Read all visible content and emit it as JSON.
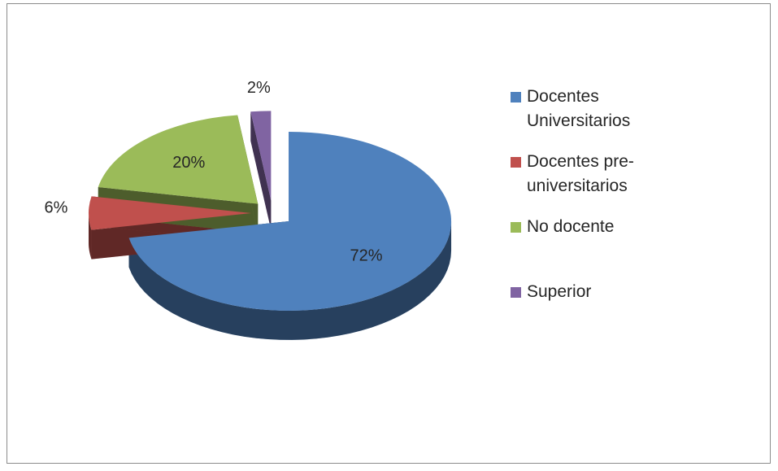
{
  "chart_data": {
    "type": "pie",
    "three_d": true,
    "exploded": true,
    "categories": [
      "Docentes Universitarios",
      "Docentes pre-universitarios",
      "No docente",
      "Superior"
    ],
    "values": [
      72,
      6,
      20,
      2
    ],
    "value_labels": [
      "72%",
      "6%",
      "20%",
      "2%"
    ],
    "colors": [
      "#4f81bd",
      "#c0504d",
      "#9bbb59",
      "#8064a2"
    ],
    "legend": "right"
  }
}
